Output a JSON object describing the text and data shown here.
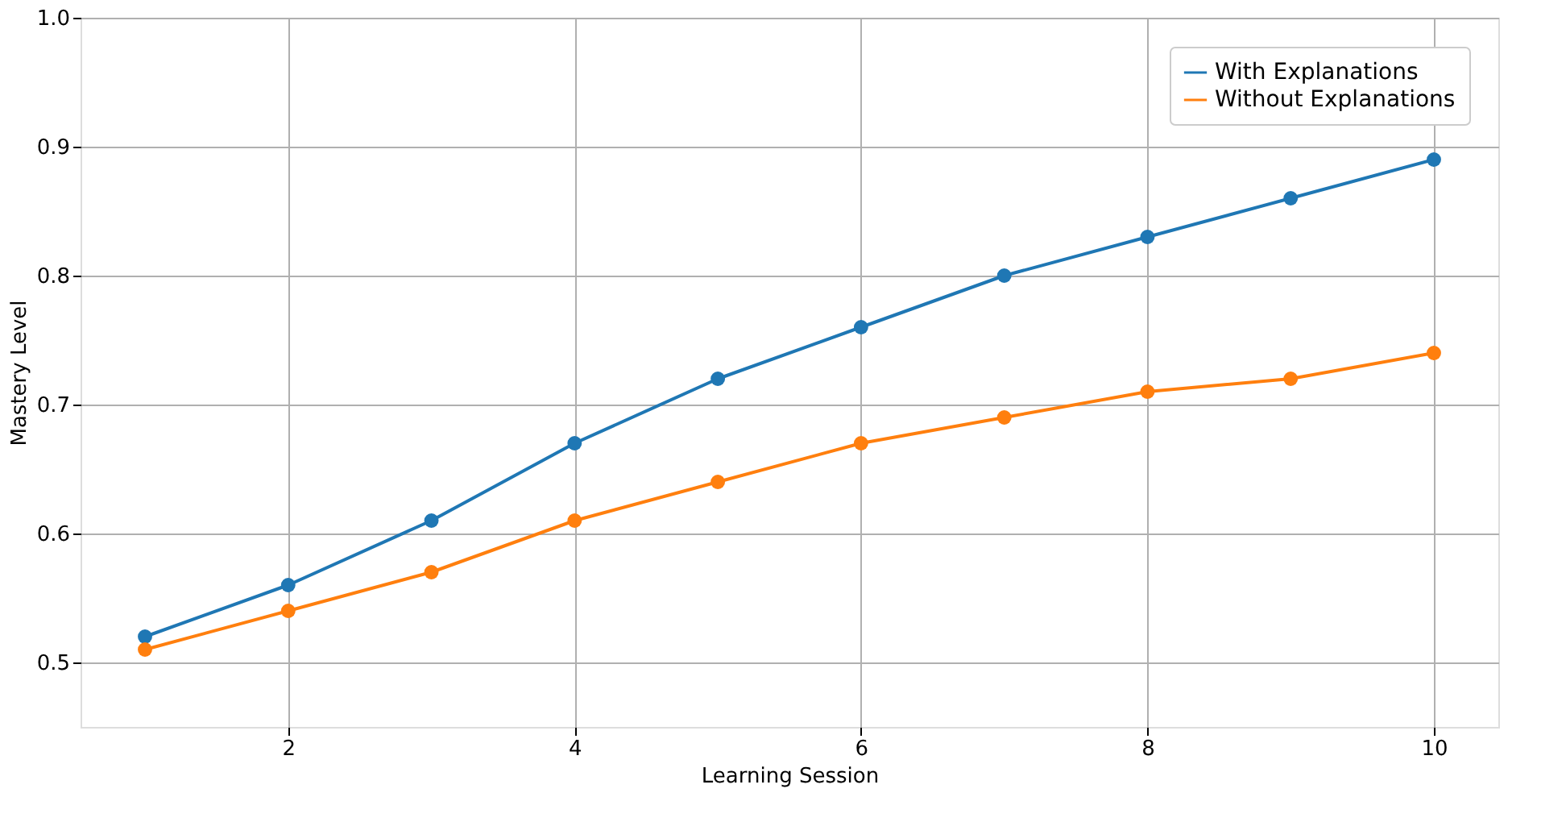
{
  "chart_data": {
    "type": "line",
    "xlabel": "Learning Session",
    "ylabel": "Mastery Level",
    "x": [
      1,
      2,
      3,
      4,
      5,
      6,
      7,
      8,
      9,
      10
    ],
    "series": [
      {
        "name": "With Explanations",
        "color": "#1f77b4",
        "values": [
          0.52,
          0.56,
          0.61,
          0.67,
          0.72,
          0.76,
          0.8,
          0.83,
          0.86,
          0.89
        ]
      },
      {
        "name": "Without Explanations",
        "color": "#ff7f0e",
        "values": [
          0.51,
          0.54,
          0.57,
          0.61,
          0.64,
          0.67,
          0.69,
          0.71,
          0.72,
          0.74
        ]
      }
    ],
    "xlim": [
      0.55,
      10.45
    ],
    "xticks": [
      2,
      4,
      6,
      8,
      10
    ],
    "ylim": [
      0.45,
      1.0
    ],
    "yticks": [
      0.5,
      0.6,
      0.7,
      0.8,
      0.9,
      {
        "value": 1.0,
        "label": "1.0"
      }
    ],
    "grid": true,
    "legend": "top right",
    "marker": "circle",
    "line_style": "solid"
  }
}
